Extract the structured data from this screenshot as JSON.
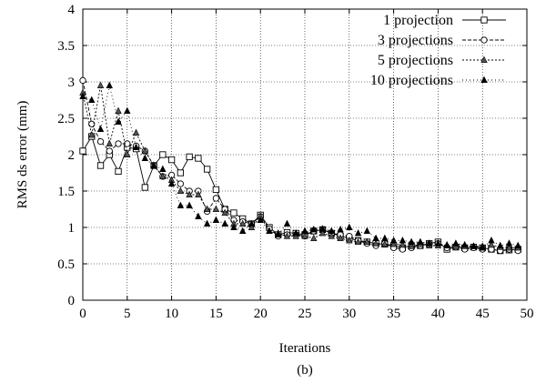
{
  "caption": "(b)",
  "chart_data": {
    "type": "line",
    "xlabel": "Iterations",
    "ylabel": "RMS ds error (mm)",
    "xlim": [
      0,
      50
    ],
    "ylim": [
      0,
      4
    ],
    "x_ticks": [
      "0",
      "5",
      "10",
      "15",
      "20",
      "25",
      "30",
      "35",
      "40",
      "45",
      "50"
    ],
    "y_ticks": [
      "0",
      "0.5",
      "1",
      "1.5",
      "2",
      "2.5",
      "3",
      "3.5",
      "4"
    ],
    "grid": true,
    "legend_position": "top-right",
    "x": [
      0,
      1,
      2,
      3,
      4,
      5,
      6,
      7,
      8,
      9,
      10,
      11,
      12,
      13,
      14,
      15,
      16,
      17,
      18,
      19,
      20,
      21,
      22,
      23,
      24,
      25,
      26,
      27,
      28,
      29,
      30,
      31,
      32,
      33,
      34,
      35,
      36,
      37,
      38,
      39,
      40,
      41,
      42,
      43,
      44,
      45,
      46,
      47,
      48,
      49
    ],
    "series": [
      {
        "name": "1 projection",
        "marker": "square",
        "dash": "solid",
        "values": [
          2.05,
          2.25,
          1.85,
          2.0,
          1.77,
          2.1,
          2.08,
          1.55,
          1.85,
          2.0,
          1.93,
          1.75,
          1.97,
          1.95,
          1.8,
          1.52,
          1.25,
          1.2,
          1.12,
          1.05,
          1.17,
          1.0,
          0.9,
          0.93,
          0.92,
          0.9,
          0.95,
          0.97,
          0.92,
          0.88,
          0.85,
          0.82,
          0.8,
          0.78,
          0.77,
          0.75,
          0.72,
          0.75,
          0.75,
          0.78,
          0.8,
          0.7,
          0.73,
          0.72,
          0.73,
          0.72,
          0.7,
          0.68,
          0.69,
          0.7
        ]
      },
      {
        "name": "3 projections",
        "marker": "circle",
        "dash": "dashed",
        "values": [
          3.02,
          2.42,
          2.18,
          2.05,
          2.15,
          2.15,
          2.12,
          2.05,
          1.85,
          1.7,
          1.72,
          1.6,
          1.5,
          1.5,
          1.22,
          1.4,
          1.25,
          1.1,
          1.08,
          1.05,
          1.15,
          0.98,
          0.88,
          0.9,
          0.9,
          0.88,
          0.95,
          0.97,
          0.92,
          0.9,
          0.88,
          0.82,
          0.78,
          0.75,
          0.78,
          0.72,
          0.7,
          0.72,
          0.75,
          0.77,
          0.78,
          0.72,
          0.73,
          0.7,
          0.72,
          0.7,
          0.7,
          0.68,
          0.7,
          0.68
        ]
      },
      {
        "name": "5 projections",
        "marker": "triangle",
        "dash": "dotted",
        "values": [
          2.85,
          2.27,
          2.95,
          2.15,
          2.6,
          2.0,
          2.3,
          2.05,
          1.85,
          1.7,
          1.65,
          1.5,
          1.45,
          1.45,
          1.25,
          1.25,
          1.2,
          1.05,
          1.05,
          1.0,
          1.15,
          0.95,
          0.92,
          0.88,
          0.88,
          0.88,
          0.85,
          0.92,
          0.88,
          0.85,
          0.82,
          0.8,
          0.8,
          0.78,
          0.77,
          0.77,
          0.76,
          0.74,
          0.77,
          0.75,
          0.75,
          0.76,
          0.74,
          0.74,
          0.74,
          0.74,
          0.76,
          0.73,
          0.72,
          0.72
        ]
      },
      {
        "name": "10 projections",
        "marker": "filled-triangle",
        "dash": "sparse-dotted",
        "values": [
          2.8,
          2.75,
          2.35,
          2.95,
          2.45,
          2.6,
          2.1,
          1.95,
          1.85,
          1.8,
          1.6,
          1.3,
          1.3,
          1.15,
          1.05,
          1.1,
          1.05,
          1.0,
          0.95,
          1.05,
          1.1,
          0.95,
          0.9,
          1.05,
          0.92,
          0.95,
          0.97,
          0.98,
          0.95,
          0.97,
          1.0,
          0.92,
          0.95,
          0.85,
          0.85,
          0.82,
          0.82,
          0.8,
          0.8,
          0.78,
          0.78,
          0.75,
          0.78,
          0.76,
          0.74,
          0.72,
          0.82,
          0.75,
          0.78,
          0.75
        ]
      }
    ]
  }
}
